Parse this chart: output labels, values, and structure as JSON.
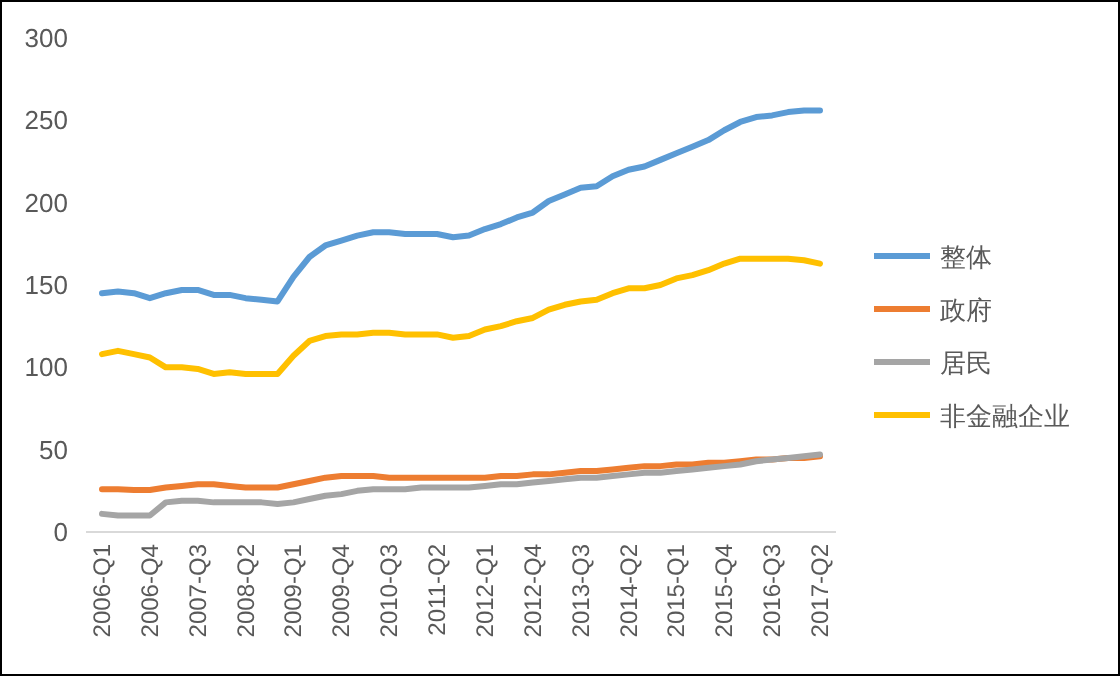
{
  "chart_data": {
    "type": "line",
    "categories": [
      "2006-Q1",
      null,
      null,
      "2006-Q4",
      null,
      null,
      "2007-Q3",
      null,
      null,
      "2008-Q2",
      null,
      null,
      "2009-Q1",
      null,
      null,
      "2009-Q4",
      null,
      null,
      "2010-Q3",
      null,
      null,
      "2011-Q2",
      null,
      null,
      "2012-Q1",
      null,
      null,
      "2012-Q4",
      null,
      null,
      "2013-Q3",
      null,
      null,
      "2014-Q2",
      null,
      null,
      "2015-Q1",
      null,
      null,
      "2015-Q4",
      null,
      null,
      "2016-Q3",
      null,
      null,
      "2017-Q2"
    ],
    "series": [
      {
        "name": "整体",
        "color": "#5b9bd5",
        "values": [
          145,
          146,
          145,
          142,
          145,
          147,
          147,
          144,
          144,
          142,
          141,
          140,
          155,
          167,
          174,
          177,
          180,
          182,
          182,
          181,
          181,
          181,
          179,
          180,
          184,
          187,
          191,
          194,
          201,
          205,
          209,
          210,
          216,
          220,
          222,
          226,
          230,
          234,
          238,
          244,
          249,
          252,
          253,
          255,
          256,
          256
        ]
      },
      {
        "name": "政府",
        "color": "#ed7d31",
        "values": [
          26,
          26,
          25.5,
          25.5,
          27,
          28,
          29,
          29,
          28,
          27,
          27,
          27,
          29,
          31,
          33,
          34,
          34,
          34,
          33,
          33,
          33,
          33,
          33,
          33,
          33,
          34,
          34,
          35,
          35,
          36,
          37,
          37,
          38,
          39,
          40,
          40,
          41,
          41,
          42,
          42,
          43,
          44,
          44,
          45,
          45,
          46
        ]
      },
      {
        "name": "居民",
        "color": "#a5a5a5",
        "values": [
          11,
          10,
          10,
          10,
          18,
          19,
          19,
          18,
          18,
          18,
          18,
          17,
          18,
          20,
          22,
          23,
          25,
          26,
          26,
          26,
          27,
          27,
          27,
          27,
          28,
          29,
          29,
          30,
          31,
          32,
          33,
          33,
          34,
          35,
          36,
          36,
          37,
          38,
          39,
          40,
          41,
          43,
          44,
          45,
          46,
          47
        ]
      },
      {
        "name": "非金融企业",
        "color": "#ffc000",
        "values": [
          108,
          110,
          108,
          106,
          100,
          100,
          99,
          96,
          97,
          96,
          96,
          96,
          107,
          116,
          119,
          120,
          120,
          121,
          121,
          120,
          120,
          120,
          118,
          119,
          123,
          125,
          128,
          130,
          135,
          138,
          140,
          141,
          145,
          148,
          148,
          150,
          154,
          156,
          159,
          163,
          166,
          166,
          166,
          166,
          165,
          163
        ]
      }
    ],
    "ylim": [
      0,
      300
    ],
    "yticks": [
      0,
      50,
      100,
      150,
      200,
      250,
      300
    ],
    "legend": "right",
    "line_style": "solid",
    "marker": "none"
  }
}
